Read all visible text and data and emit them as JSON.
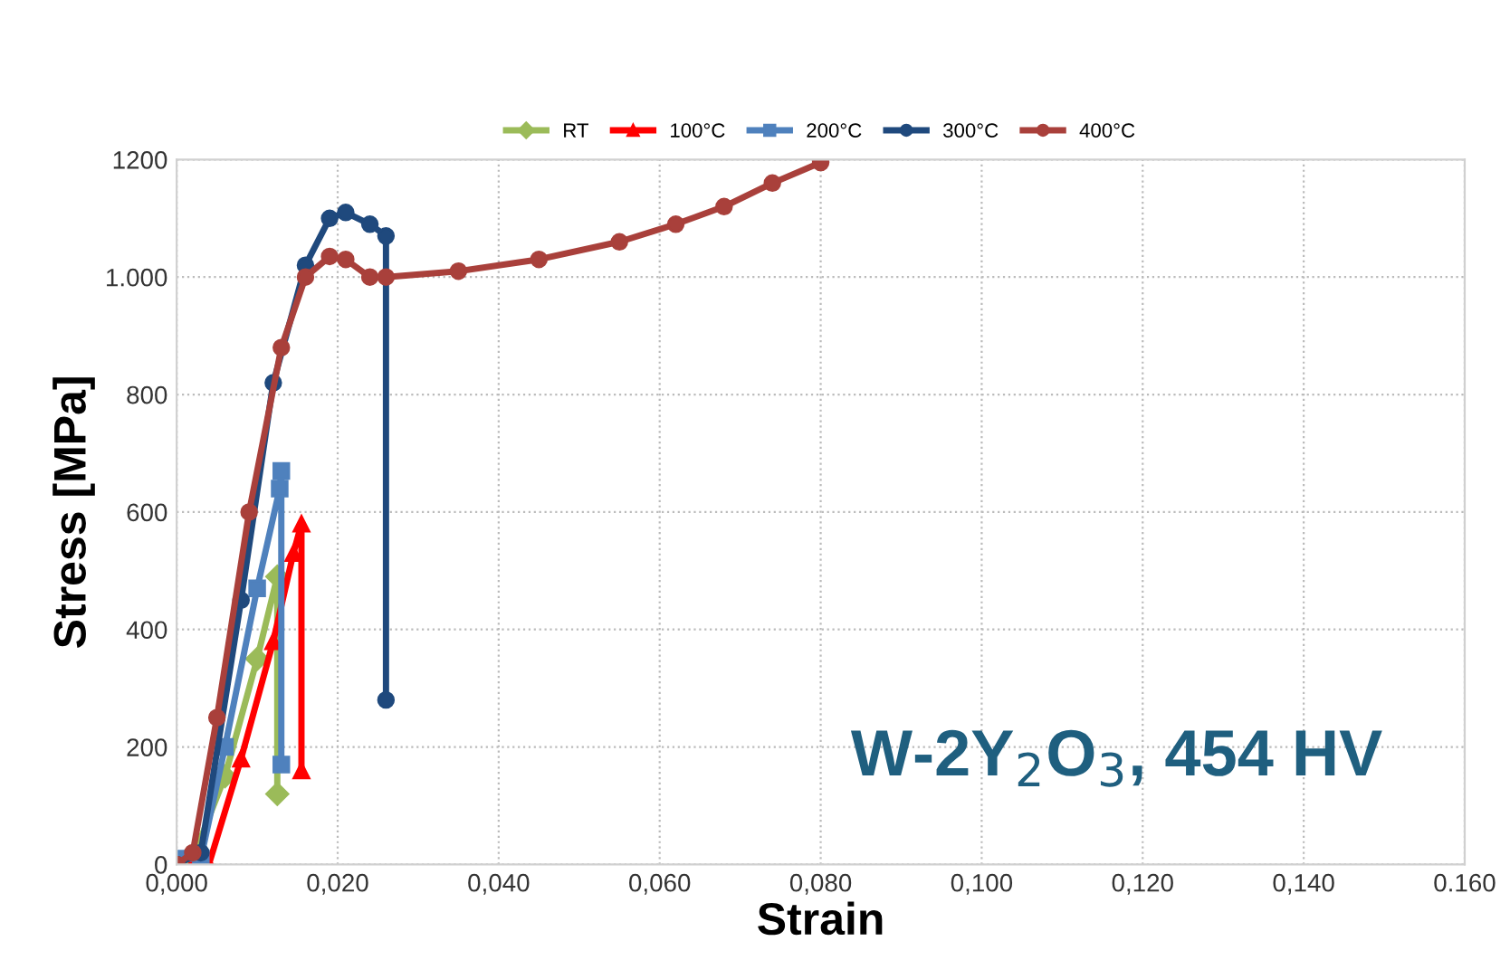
{
  "chart_data": {
    "type": "line",
    "xlabel": "Strain",
    "ylabel": "Stress [MPa]",
    "xlim": [
      0,
      0.16
    ],
    "xticks": [
      {
        "value": 0,
        "label": "0,000"
      },
      {
        "value": 0.02,
        "label": "0,020"
      },
      {
        "value": 0.04,
        "label": "0,040"
      },
      {
        "value": 0.06,
        "label": "0,060"
      },
      {
        "value": 0.08,
        "label": "0,080"
      },
      {
        "value": 0.1,
        "label": "0,100"
      },
      {
        "value": 0.12,
        "label": "0,120"
      },
      {
        "value": 0.14,
        "label": "0,140"
      },
      {
        "value": 0.16,
        "label": "0.160"
      }
    ],
    "ylim": [
      0,
      1200
    ],
    "yticks": [
      0,
      200,
      400,
      600,
      800,
      {
        "value": 1000,
        "label": "1.000"
      },
      1200
    ],
    "grid": true,
    "legend": "top",
    "line_style": "solid",
    "annotations": [
      "W-2Y$_{2}$O$_{3}$, 454 HV"
    ],
    "series": [
      {
        "name": "RT",
        "color": "#9bbb59",
        "marker": "diamond",
        "x": [
          0,
          0.002,
          0.006,
          0.01,
          0.0125,
          0.0125
        ],
        "values": [
          0,
          10,
          150,
          350,
          490,
          120
        ]
      },
      {
        "name": "100°C",
        "color": "#ff0000",
        "marker": "triangle",
        "x": [
          0.002,
          0.004,
          0.008,
          0.012,
          0.0145,
          0.0155,
          0.0155
        ],
        "values": [
          0,
          0,
          180,
          380,
          530,
          580,
          160
        ]
      },
      {
        "name": "200°C",
        "color": "#4f81bd",
        "marker": "square",
        "x": [
          0,
          0.003,
          0.006,
          0.01,
          0.0128,
          0.013,
          0.013
        ],
        "values": [
          10,
          10,
          200,
          470,
          640,
          670,
          170
        ]
      },
      {
        "name": "300°C",
        "color": "#1f497d",
        "marker": "circle",
        "x": [
          0,
          0.003,
          0.008,
          0.012,
          0.016,
          0.019,
          0.021,
          0.024,
          0.026,
          0.026
        ],
        "values": [
          0,
          20,
          450,
          820,
          1020,
          1100,
          1110,
          1090,
          1070,
          280
        ]
      },
      {
        "name": "400°C",
        "color": "#a9403b",
        "marker": "circle",
        "x": [
          0,
          0.002,
          0.005,
          0.009,
          0.013,
          0.016,
          0.019,
          0.021,
          0.024,
          0.026,
          0.035,
          0.045,
          0.055,
          0.062,
          0.068,
          0.074,
          0.08
        ],
        "values": [
          0,
          20,
          250,
          600,
          880,
          1000,
          1035,
          1030,
          1000,
          1000,
          1010,
          1030,
          1060,
          1090,
          1120,
          1160,
          1195
        ]
      }
    ]
  }
}
